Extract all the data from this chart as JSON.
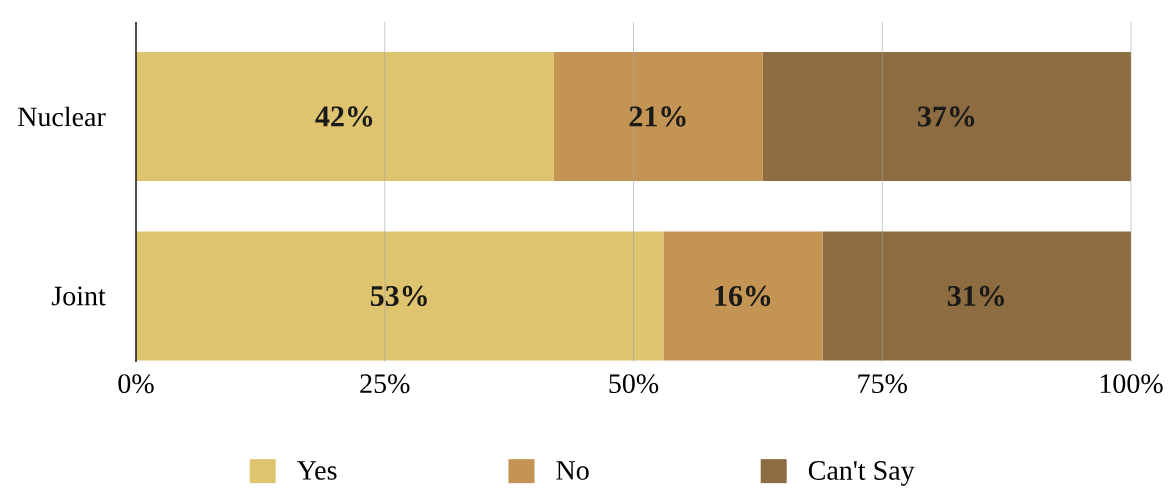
{
  "chart_data": {
    "type": "bar",
    "orientation": "horizontal",
    "stacked": true,
    "categories": [
      "Nuclear",
      "Joint"
    ],
    "series": [
      {
        "name": "Yes",
        "color": "#dfc46f",
        "values": [
          42,
          53
        ],
        "value_labels": [
          "42%",
          "53%"
        ]
      },
      {
        "name": "No",
        "color": "#c39453",
        "values": [
          21,
          16
        ],
        "value_labels": [
          "21%",
          "16%"
        ]
      },
      {
        "name": "Can't Say",
        "color": "#8c6c40",
        "values": [
          37,
          31
        ],
        "value_labels": [
          "37%",
          "31%"
        ]
      }
    ],
    "xlim": [
      0,
      100
    ],
    "xticks": [
      {
        "value": 0,
        "label": "0%"
      },
      {
        "value": 25,
        "label": "25%"
      },
      {
        "value": 50,
        "label": "50%"
      },
      {
        "value": 75,
        "label": "75%"
      },
      {
        "value": 100,
        "label": "100%"
      }
    ],
    "grid": "x",
    "legend": "bottom"
  }
}
